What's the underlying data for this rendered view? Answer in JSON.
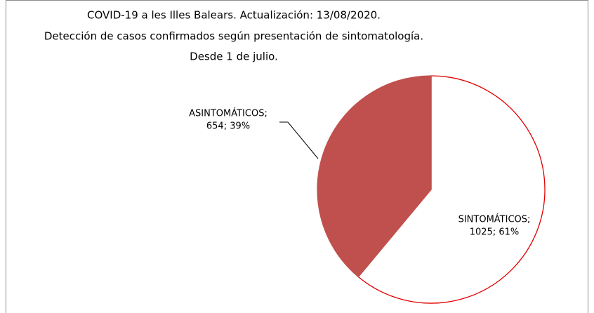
{
  "chart_data": {
    "type": "pie",
    "title": [
      "COVID-19 a les Illes Balears. Actualización:  13/08/2020.",
      "Detección de casos confirmados según presentación  de sintomatología.",
      "Desde 1 de julio."
    ],
    "categories": [
      "SINTOMÁTICOS;",
      "ASINTOMÁTICOS;"
    ],
    "values": [
      1025,
      654
    ],
    "value_labels": [
      "1025; 61%",
      "654; 39%"
    ],
    "colors": [
      "#ffffff",
      "#c0504d"
    ],
    "edgecolors": [
      "#e00000",
      "#c0504d"
    ]
  }
}
